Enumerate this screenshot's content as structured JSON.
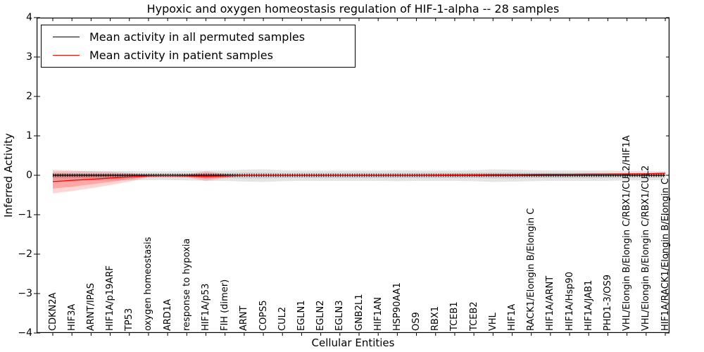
{
  "chart_data": {
    "type": "line",
    "title": "Hypoxic and oxygen homeostasis regulation of HIF-1-alpha -- 28 samples",
    "xlabel": "Cellular Entities",
    "ylabel": "Inferred Activity",
    "ylim": [
      -4,
      4
    ],
    "ytick_labels": [
      "4",
      "3",
      "2",
      "1",
      "0",
      "−1",
      "−2",
      "−3",
      "−4"
    ],
    "x_tick_rotation": 90,
    "grid": false,
    "legend_position": "upper left",
    "categories": [
      "CDKN2A",
      "HIF3A",
      "ARNT/IPAS",
      "HIF1A/p19ARF",
      "TP53",
      "oxygen homeostasis",
      "ARD1A",
      "response to hypoxia",
      "HIF1A/p53",
      "FIH (dimer)",
      "ARNT",
      "COPS5",
      "CUL2",
      "EGLN1",
      "EGLN2",
      "EGLN3",
      "GNB2L1",
      "HIF1AN",
      "HSP90AA1",
      "OS9",
      "RBX1",
      "TCEB1",
      "TCEB2",
      "VHL",
      "HIF1A",
      "RACK1/Elongin B/Elongin C",
      "HIF1A/ARNT",
      "HIF1A/Hsp90",
      "HIF1A/JAB1",
      "PHD1-3/OS9",
      "VHL/Elongin B/Elongin C/RBX1/CUL2/HIF1A",
      "VHL/Elongin B/Elongin C/RBX1/CUL2",
      "HIF1A/RACK1/Elongin B/Elongin C"
    ],
    "series": [
      {
        "name": "Mean activity in all permuted samples",
        "color": "#000000",
        "values": [
          0,
          0,
          0,
          0,
          0,
          0,
          0,
          0,
          0,
          0,
          0,
          0,
          0,
          0,
          0,
          0,
          0,
          0,
          0,
          0,
          0,
          0,
          0,
          0,
          0,
          0,
          0,
          0,
          0,
          0,
          0,
          0,
          0
        ]
      },
      {
        "name": "Mean activity in patient samples",
        "color": "#ff0000",
        "values": [
          -0.16,
          -0.13,
          -0.1,
          -0.07,
          -0.04,
          -0.015,
          -0.01,
          -0.015,
          -0.03,
          -0.015,
          0,
          0,
          0,
          0,
          0,
          0,
          0,
          0,
          0,
          0,
          0.005,
          0.01,
          0.01,
          0.015,
          0.015,
          0.02,
          0.025,
          0.025,
          0.03,
          0.03,
          0.035,
          0.04,
          0.05
        ]
      }
    ],
    "bands": [
      {
        "name": "permuted-outer",
        "series": "Mean activity in all permuted samples",
        "color": "#000000",
        "opacity": 0.1,
        "upper": [
          0.1,
          0.1,
          0.11,
          0.11,
          0.11,
          0.1,
          0.1,
          0.11,
          0.12,
          0.12,
          0.14,
          0.15,
          0.13,
          0.12,
          0.12,
          0.12,
          0.12,
          0.12,
          0.13,
          0.12,
          0.12,
          0.12,
          0.13,
          0.15,
          0.14,
          0.13,
          0.12,
          0.12,
          0.12,
          0.12,
          0.11,
          0.11,
          0.1
        ],
        "lower": [
          -0.12,
          -0.12,
          -0.13,
          -0.13,
          -0.13,
          -0.12,
          -0.12,
          -0.13,
          -0.14,
          -0.14,
          -0.16,
          -0.17,
          -0.15,
          -0.14,
          -0.14,
          -0.14,
          -0.14,
          -0.14,
          -0.15,
          -0.14,
          -0.14,
          -0.14,
          -0.15,
          -0.17,
          -0.16,
          -0.15,
          -0.14,
          -0.14,
          -0.14,
          -0.14,
          -0.13,
          -0.13,
          -0.12
        ]
      },
      {
        "name": "permuted-inner",
        "series": "Mean activity in all permuted samples",
        "color": "#000000",
        "opacity": 0.09,
        "upper": [
          0.05,
          0.05,
          0.05,
          0.05,
          0.05,
          0.05,
          0.05,
          0.05,
          0.06,
          0.06,
          0.07,
          0.07,
          0.06,
          0.06,
          0.06,
          0.06,
          0.06,
          0.06,
          0.06,
          0.06,
          0.06,
          0.06,
          0.06,
          0.07,
          0.07,
          0.06,
          0.06,
          0.06,
          0.06,
          0.06,
          0.05,
          0.05,
          0.05
        ],
        "lower": [
          -0.06,
          -0.06,
          -0.06,
          -0.06,
          -0.06,
          -0.06,
          -0.06,
          -0.06,
          -0.07,
          -0.07,
          -0.08,
          -0.08,
          -0.07,
          -0.07,
          -0.07,
          -0.07,
          -0.07,
          -0.07,
          -0.07,
          -0.07,
          -0.07,
          -0.07,
          -0.07,
          -0.08,
          -0.08,
          -0.07,
          -0.07,
          -0.07,
          -0.07,
          -0.07,
          -0.06,
          -0.06,
          -0.06
        ]
      },
      {
        "name": "patient-outer",
        "series": "Mean activity in patient samples",
        "color": "#ff0000",
        "opacity": 0.16,
        "upper": [
          0.14,
          0.12,
          0.1,
          0.09,
          0.06,
          0.01,
          0.01,
          0.02,
          0.1,
          0.04,
          0.01,
          0.01,
          0.01,
          0.01,
          0.01,
          0.01,
          0.01,
          0.01,
          0.01,
          0.01,
          0.02,
          0.02,
          0.02,
          0.03,
          0.03,
          0.03,
          0.04,
          0.04,
          0.04,
          0.05,
          0.06,
          0.06,
          0.08
        ],
        "lower": [
          -0.46,
          -0.4,
          -0.33,
          -0.25,
          -0.16,
          -0.04,
          -0.03,
          -0.05,
          -0.14,
          -0.07,
          -0.02,
          -0.02,
          -0.02,
          -0.02,
          -0.02,
          -0.02,
          -0.02,
          -0.02,
          -0.02,
          -0.02,
          -0.01,
          -0.01,
          -0.01,
          -0.01,
          -0.01,
          -0.01,
          0.0,
          0.0,
          0.0,
          0.0,
          0.01,
          0.01,
          0.02
        ]
      },
      {
        "name": "patient-inner",
        "series": "Mean activity in patient samples",
        "color": "#ff0000",
        "opacity": 0.22,
        "upper": [
          0.05,
          0.04,
          0.03,
          0.03,
          0.02,
          0.0,
          0.0,
          0.01,
          0.05,
          0.02,
          0.005,
          0.005,
          0.005,
          0.005,
          0.005,
          0.005,
          0.005,
          0.005,
          0.005,
          0.005,
          0.01,
          0.015,
          0.015,
          0.02,
          0.02,
          0.025,
          0.03,
          0.03,
          0.035,
          0.035,
          0.04,
          0.045,
          0.06
        ],
        "lower": [
          -0.34,
          -0.29,
          -0.23,
          -0.17,
          -0.1,
          -0.03,
          -0.02,
          -0.03,
          -0.09,
          -0.05,
          -0.01,
          -0.01,
          -0.01,
          -0.01,
          -0.01,
          -0.01,
          -0.01,
          -0.01,
          -0.01,
          -0.01,
          -0.005,
          0.0,
          0.0,
          0.005,
          0.005,
          0.01,
          0.015,
          0.015,
          0.02,
          0.02,
          0.025,
          0.03,
          0.04
        ]
      }
    ]
  }
}
